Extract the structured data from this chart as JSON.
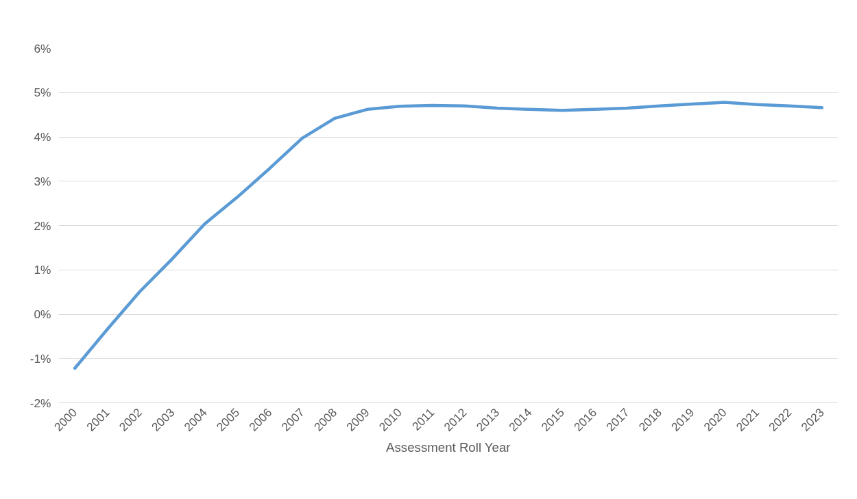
{
  "chart_data": {
    "type": "line",
    "xlabel": "Assessment Roll Year",
    "categories": [
      "2000",
      "2001",
      "2002",
      "2003",
      "2004",
      "2005",
      "2006",
      "2007",
      "2008",
      "2009",
      "2010",
      "2011",
      "2012",
      "2013",
      "2014",
      "2015",
      "2016",
      "2017",
      "2018",
      "2019",
      "2020",
      "2021",
      "2022",
      "2023"
    ],
    "series": [
      {
        "color": "#5b9bd5",
        "values": [
          -1.22,
          -0.34,
          0.51,
          1.25,
          2.04,
          2.64,
          3.29,
          3.97,
          4.42,
          4.62,
          4.69,
          4.71,
          4.7,
          4.65,
          4.62,
          4.6,
          4.62,
          4.65,
          4.7,
          4.74,
          4.78,
          4.73,
          4.7,
          4.66
        ]
      }
    ],
    "ylim": [
      -2,
      6
    ],
    "yticks": [
      {
        "value": -2,
        "label": "-2%"
      },
      {
        "value": -1,
        "label": "-1%"
      },
      {
        "value": 0,
        "label": "0%"
      },
      {
        "value": 1,
        "label": "1%"
      },
      {
        "value": 2,
        "label": "2%"
      },
      {
        "value": 3,
        "label": "3%"
      },
      {
        "value": 4,
        "label": "4%"
      },
      {
        "value": 5,
        "label": "5%"
      },
      {
        "value": 6,
        "label": "6%"
      }
    ],
    "grid": "y",
    "marker": "none",
    "line_style": "solid"
  }
}
